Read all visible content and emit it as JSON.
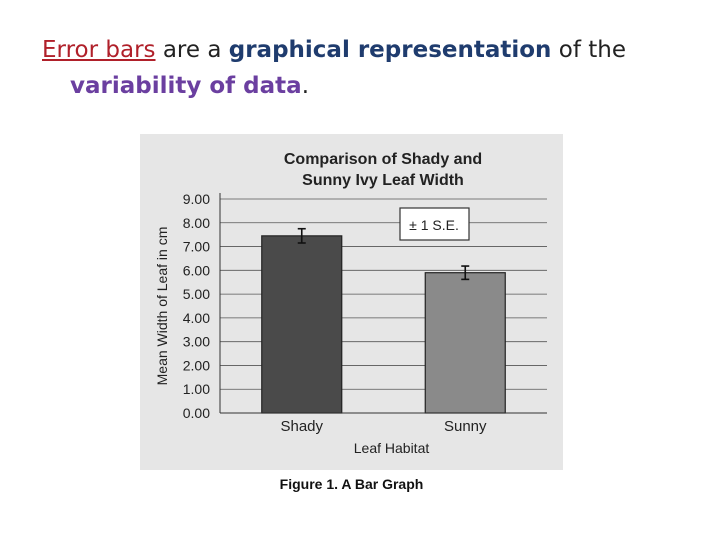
{
  "slide": {
    "heading_parts": {
      "p1": "Error bars",
      "p2": " are a ",
      "p3": "graphical representation",
      "p4": " of the",
      "p5": "variability of data",
      "p6": "."
    },
    "colors": {
      "red": "#b0202a",
      "navy": "#1f3c6e",
      "purple": "#6b3fa0"
    }
  },
  "figure_caption": "Figure 1. A Bar Graph",
  "chart_data": {
    "type": "bar",
    "title_lines": [
      "Comparison of Shady and",
      "Sunny Ivy Leaf Width"
    ],
    "categories": [
      "Shady",
      "Sunny"
    ],
    "values": [
      7.45,
      5.9
    ],
    "errors": [
      0.3,
      0.28
    ],
    "bar_colors": [
      "#4a4a4a",
      "#8a8a8a"
    ],
    "xlabel": "Leaf Habitat",
    "ylabel": "Mean Width of Leaf in cm",
    "ylim": [
      0,
      9
    ],
    "yticks": [
      "0.00",
      "1.00",
      "2.00",
      "3.00",
      "4.00",
      "5.00",
      "6.00",
      "7.00",
      "8.00",
      "9.00"
    ],
    "grid": true,
    "legend": {
      "label": "± 1 S.E.",
      "placement": "top-right"
    }
  }
}
